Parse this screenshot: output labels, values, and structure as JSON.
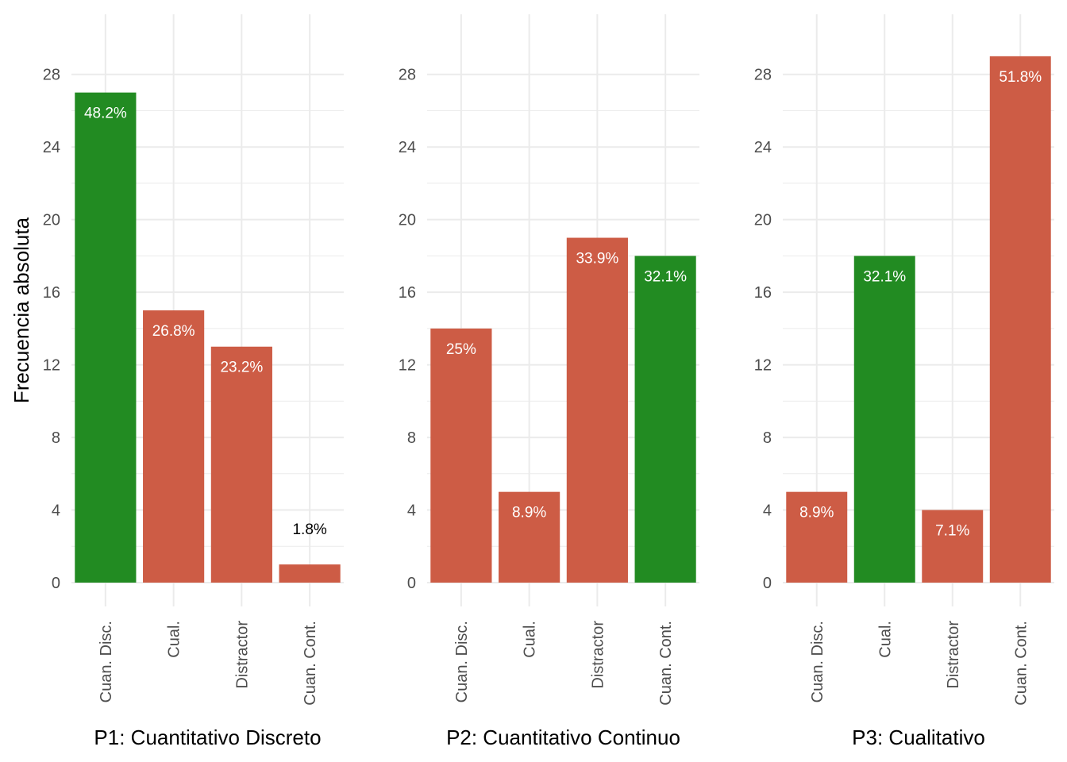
{
  "figure": {
    "ylabel": "Frecuencia absoluta"
  },
  "colors": {
    "correct": "#228B22",
    "incorrect": "#CD5C45",
    "grid": "#EBEBEB",
    "tick_text": "#4D4D4D"
  },
  "chart_data": [
    {
      "type": "bar",
      "xlabel": "P1: Cuantitativo Discreto",
      "ylabel": "Frecuencia absoluta",
      "ylim": [
        0,
        30
      ],
      "yticks": [
        0,
        4,
        8,
        12,
        16,
        20,
        24,
        28
      ],
      "categories": [
        "Cuan. Disc.",
        "Cual.",
        "Distractor",
        "Cuan. Cont."
      ],
      "values": [
        27,
        15,
        13,
        1
      ],
      "labels": [
        "48.2%",
        "26.8%",
        "23.2%",
        "1.8%"
      ],
      "correct": [
        true,
        false,
        false,
        false
      ]
    },
    {
      "type": "bar",
      "xlabel": "P2: Cuantitativo Continuo",
      "ylabel": "",
      "ylim": [
        0,
        30
      ],
      "yticks": [
        0,
        4,
        8,
        12,
        16,
        20,
        24,
        28
      ],
      "categories": [
        "Cuan. Disc.",
        "Cual.",
        "Distractor",
        "Cuan. Cont."
      ],
      "values": [
        14,
        5,
        19,
        18
      ],
      "labels": [
        "25%",
        "8.9%",
        "33.9%",
        "32.1%"
      ],
      "correct": [
        false,
        false,
        false,
        true
      ]
    },
    {
      "type": "bar",
      "xlabel": "P3: Cualitativo",
      "ylabel": "",
      "ylim": [
        0,
        30
      ],
      "yticks": [
        0,
        4,
        8,
        12,
        16,
        20,
        24,
        28
      ],
      "categories": [
        "Cuan. Disc.",
        "Cual.",
        "Distractor",
        "Cuan. Cont."
      ],
      "values": [
        5,
        18,
        4,
        29
      ],
      "labels": [
        "8.9%",
        "32.1%",
        "7.1%",
        "51.8%"
      ],
      "correct": [
        false,
        true,
        false,
        false
      ]
    }
  ]
}
